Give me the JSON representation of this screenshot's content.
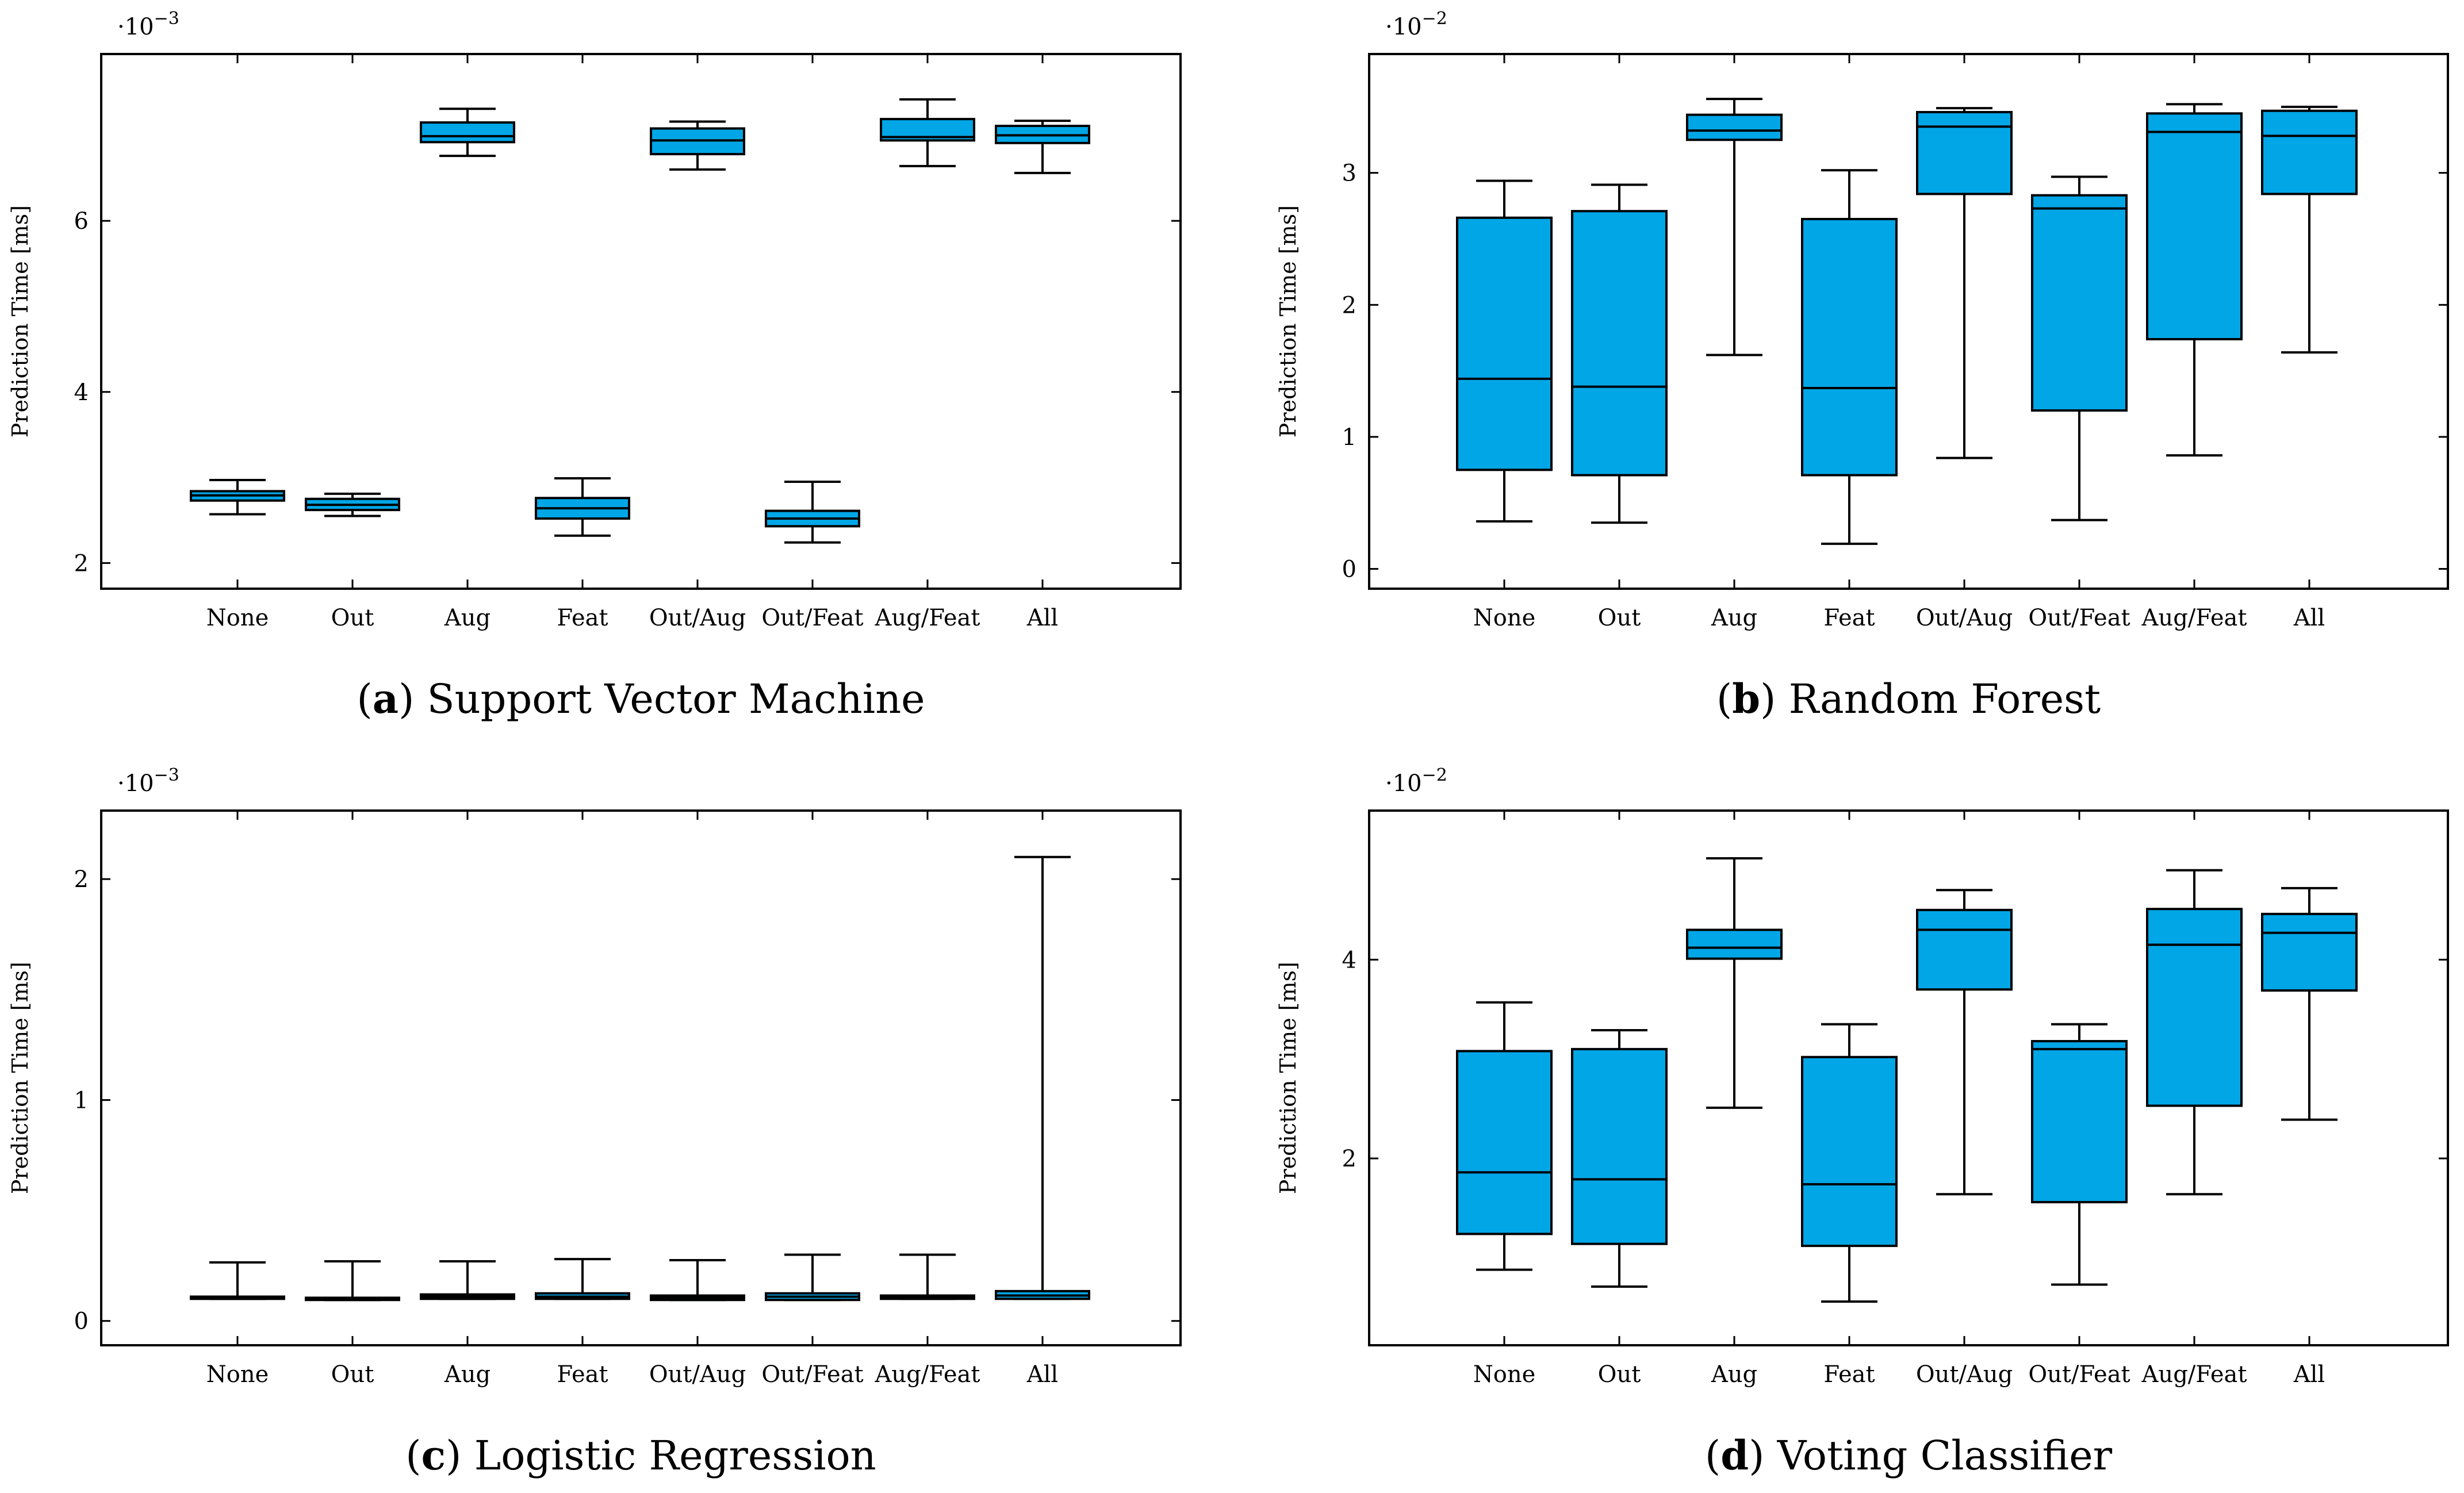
{
  "figure": {
    "ylabel": "Prediction Time [ms]",
    "colors": {
      "box_fill": "#00A6E6",
      "stroke": "#000000",
      "background": "#ffffff"
    }
  },
  "chart_data": [
    {
      "type": "boxplot",
      "panel_letter": "a",
      "title": "Support Vector Machine",
      "ylabel": "Prediction Time [ms]",
      "multiplier": {
        "base": "10",
        "exponent": "−3"
      },
      "ylim": [
        1.7,
        7.95
      ],
      "yticks": [
        2,
        4,
        6
      ],
      "categories": [
        "None",
        "Out",
        "Aug",
        "Feat",
        "Out/Aug",
        "Out/Feat",
        "Aug/Feat",
        "All"
      ],
      "boxes": [
        {
          "whisker_low": 2.57,
          "q1": 2.73,
          "median": 2.79,
          "q3": 2.84,
          "whisker_high": 2.97
        },
        {
          "whisker_low": 2.55,
          "q1": 2.62,
          "median": 2.68,
          "q3": 2.75,
          "whisker_high": 2.81
        },
        {
          "whisker_low": 6.76,
          "q1": 6.92,
          "median": 6.99,
          "q3": 7.15,
          "whisker_high": 7.31
        },
        {
          "whisker_low": 2.32,
          "q1": 2.52,
          "median": 2.64,
          "q3": 2.76,
          "whisker_high": 2.99
        },
        {
          "whisker_low": 6.6,
          "q1": 6.78,
          "median": 6.94,
          "q3": 7.08,
          "whisker_high": 7.16
        },
        {
          "whisker_low": 2.24,
          "q1": 2.43,
          "median": 2.52,
          "q3": 2.61,
          "whisker_high": 2.95
        },
        {
          "whisker_low": 6.64,
          "q1": 6.94,
          "median": 6.98,
          "q3": 7.19,
          "whisker_high": 7.42
        },
        {
          "whisker_low": 6.56,
          "q1": 6.91,
          "median": 7.0,
          "q3": 7.11,
          "whisker_high": 7.17
        }
      ]
    },
    {
      "type": "boxplot",
      "panel_letter": "b",
      "title": "Random Forest",
      "ylabel": "Prediction Time [ms]",
      "multiplier": {
        "base": "10",
        "exponent": "−2"
      },
      "ylim": [
        -0.15,
        3.9
      ],
      "yticks": [
        0,
        1,
        2,
        3
      ],
      "categories": [
        "None",
        "Out",
        "Aug",
        "Feat",
        "Out/Aug",
        "Out/Feat",
        "Aug/Feat",
        "All"
      ],
      "boxes": [
        {
          "whisker_low": 0.36,
          "q1": 0.75,
          "median": 1.44,
          "q3": 2.66,
          "whisker_high": 2.94
        },
        {
          "whisker_low": 0.35,
          "q1": 0.71,
          "median": 1.38,
          "q3": 2.71,
          "whisker_high": 2.91
        },
        {
          "whisker_low": 1.62,
          "q1": 3.25,
          "median": 3.32,
          "q3": 3.44,
          "whisker_high": 3.56
        },
        {
          "whisker_low": 0.19,
          "q1": 0.71,
          "median": 1.37,
          "q3": 2.65,
          "whisker_high": 3.02
        },
        {
          "whisker_low": 0.84,
          "q1": 2.84,
          "median": 3.35,
          "q3": 3.46,
          "whisker_high": 3.49
        },
        {
          "whisker_low": 0.37,
          "q1": 1.2,
          "median": 2.73,
          "q3": 2.83,
          "whisker_high": 2.97
        },
        {
          "whisker_low": 0.86,
          "q1": 1.74,
          "median": 3.31,
          "q3": 3.45,
          "whisker_high": 3.52
        },
        {
          "whisker_low": 1.64,
          "q1": 2.84,
          "median": 3.28,
          "q3": 3.47,
          "whisker_high": 3.5
        }
      ]
    },
    {
      "type": "boxplot",
      "panel_letter": "c",
      "title": "Logistic Regression",
      "ylabel": "Prediction Time [ms]",
      "multiplier": {
        "base": "10",
        "exponent": "−3"
      },
      "ylim": [
        -0.11,
        2.31
      ],
      "yticks": [
        0,
        1,
        2
      ],
      "categories": [
        "None",
        "Out",
        "Aug",
        "Feat",
        "Out/Aug",
        "Out/Feat",
        "Aug/Feat",
        "All"
      ],
      "boxes": [
        {
          "whisker_low": 0.1,
          "q1": 0.1,
          "median": 0.105,
          "q3": 0.11,
          "whisker_high": 0.265
        },
        {
          "whisker_low": 0.095,
          "q1": 0.095,
          "median": 0.1,
          "q3": 0.105,
          "whisker_high": 0.27
        },
        {
          "whisker_low": 0.1,
          "q1": 0.1,
          "median": 0.11,
          "q3": 0.12,
          "whisker_high": 0.27
        },
        {
          "whisker_low": 0.1,
          "q1": 0.1,
          "median": 0.11,
          "q3": 0.125,
          "whisker_high": 0.28
        },
        {
          "whisker_low": 0.095,
          "q1": 0.095,
          "median": 0.105,
          "q3": 0.115,
          "whisker_high": 0.275
        },
        {
          "whisker_low": 0.095,
          "q1": 0.095,
          "median": 0.11,
          "q3": 0.125,
          "whisker_high": 0.3
        },
        {
          "whisker_low": 0.1,
          "q1": 0.1,
          "median": 0.105,
          "q3": 0.115,
          "whisker_high": 0.3
        },
        {
          "whisker_low": 0.1,
          "q1": 0.1,
          "median": 0.115,
          "q3": 0.135,
          "whisker_high": 2.1
        }
      ]
    },
    {
      "type": "boxplot",
      "panel_letter": "d",
      "title": "Voting Classifier",
      "ylabel": "Prediction Time [ms]",
      "multiplier": {
        "base": "10",
        "exponent": "−2"
      },
      "ylim": [
        0.12,
        5.5
      ],
      "yticks": [
        2,
        4
      ],
      "categories": [
        "None",
        "Out",
        "Aug",
        "Feat",
        "Out/Aug",
        "Out/Feat",
        "Aug/Feat",
        "All"
      ],
      "boxes": [
        {
          "whisker_low": 0.88,
          "q1": 1.24,
          "median": 1.86,
          "q3": 3.08,
          "whisker_high": 3.57
        },
        {
          "whisker_low": 0.71,
          "q1": 1.14,
          "median": 1.79,
          "q3": 3.1,
          "whisker_high": 3.29
        },
        {
          "whisker_low": 2.51,
          "q1": 4.01,
          "median": 4.12,
          "q3": 4.3,
          "whisker_high": 5.02
        },
        {
          "whisker_low": 0.56,
          "q1": 1.12,
          "median": 1.74,
          "q3": 3.02,
          "whisker_high": 3.35
        },
        {
          "whisker_low": 1.64,
          "q1": 3.7,
          "median": 4.3,
          "q3": 4.5,
          "whisker_high": 4.7
        },
        {
          "whisker_low": 0.73,
          "q1": 1.56,
          "median": 3.1,
          "q3": 3.18,
          "whisker_high": 3.35
        },
        {
          "whisker_low": 1.64,
          "q1": 2.53,
          "median": 4.15,
          "q3": 4.51,
          "whisker_high": 4.9
        },
        {
          "whisker_low": 2.39,
          "q1": 3.69,
          "median": 4.27,
          "q3": 4.46,
          "whisker_high": 4.72
        }
      ]
    }
  ]
}
